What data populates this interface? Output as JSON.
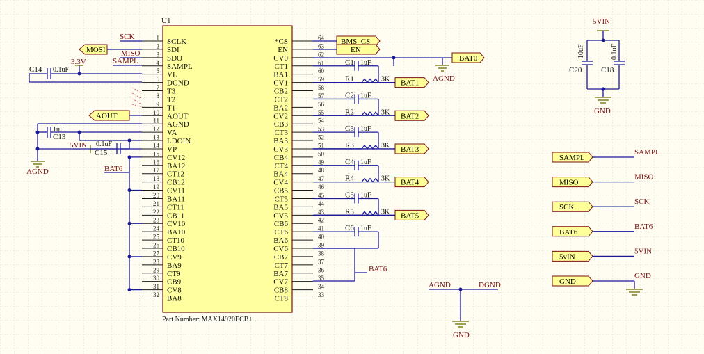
{
  "chip": {
    "designator": "U1",
    "part_number": "Part Number: MAX14920ECB+",
    "left_pins": [
      {
        "num": "1",
        "name": "SCLK"
      },
      {
        "num": "2",
        "name": "SDI"
      },
      {
        "num": "3",
        "name": "SDO"
      },
      {
        "num": "4",
        "name": "SAMPL"
      },
      {
        "num": "5",
        "name": "VL"
      },
      {
        "num": "6",
        "name": "DGND"
      },
      {
        "num": "7",
        "name": "T3"
      },
      {
        "num": "8",
        "name": "T2"
      },
      {
        "num": "9",
        "name": "T1"
      },
      {
        "num": "10",
        "name": "AOUT"
      },
      {
        "num": "11",
        "name": "AGND"
      },
      {
        "num": "12",
        "name": "VA"
      },
      {
        "num": "13",
        "name": "LDOIN"
      },
      {
        "num": "14",
        "name": "VP"
      },
      {
        "num": "15",
        "name": "CV12"
      },
      {
        "num": "16",
        "name": "BA12"
      },
      {
        "num": "17",
        "name": "CT12"
      },
      {
        "num": "18",
        "name": "CB12"
      },
      {
        "num": "19",
        "name": "CV11"
      },
      {
        "num": "20",
        "name": "BA11"
      },
      {
        "num": "21",
        "name": "CT11"
      },
      {
        "num": "22",
        "name": "CB11"
      },
      {
        "num": "23",
        "name": "CV10"
      },
      {
        "num": "24",
        "name": "BA10"
      },
      {
        "num": "25",
        "name": "CT10"
      },
      {
        "num": "26",
        "name": "CB10"
      },
      {
        "num": "27",
        "name": "CV9"
      },
      {
        "num": "28",
        "name": "BA9"
      },
      {
        "num": "29",
        "name": "CT9"
      },
      {
        "num": "30",
        "name": "CB9"
      },
      {
        "num": "31",
        "name": "CV8"
      },
      {
        "num": "32",
        "name": "BA8"
      }
    ],
    "right_pins": [
      {
        "num": "64",
        "name": "*CS"
      },
      {
        "num": "63",
        "name": "EN"
      },
      {
        "num": "62",
        "name": "CV0"
      },
      {
        "num": "61",
        "name": "CT1"
      },
      {
        "num": "60",
        "name": "BA1"
      },
      {
        "num": "59",
        "name": "CV1"
      },
      {
        "num": "58",
        "name": "CB2"
      },
      {
        "num": "57",
        "name": "CT2"
      },
      {
        "num": "56",
        "name": "BA2"
      },
      {
        "num": "55",
        "name": "CV2"
      },
      {
        "num": "54",
        "name": "CB3"
      },
      {
        "num": "53",
        "name": "CT3"
      },
      {
        "num": "52",
        "name": "BA3"
      },
      {
        "num": "51",
        "name": "CV3"
      },
      {
        "num": "50",
        "name": "CB4"
      },
      {
        "num": "49",
        "name": "CT4"
      },
      {
        "num": "48",
        "name": "BA4"
      },
      {
        "num": "47",
        "name": "CV4"
      },
      {
        "num": "46",
        "name": "CB5"
      },
      {
        "num": "45",
        "name": "CT5"
      },
      {
        "num": "44",
        "name": "BA5"
      },
      {
        "num": "43",
        "name": "CV5"
      },
      {
        "num": "42",
        "name": "CB6"
      },
      {
        "num": "41",
        "name": "CT6"
      },
      {
        "num": "40",
        "name": "BA6"
      },
      {
        "num": "39",
        "name": "CV6"
      },
      {
        "num": "38",
        "name": "CB7"
      },
      {
        "num": "37",
        "name": "CT7"
      },
      {
        "num": "36",
        "name": "BA7"
      },
      {
        "num": "35",
        "name": "CV7"
      },
      {
        "num": "34",
        "name": "CB8"
      },
      {
        "num": "33",
        "name": "CT8"
      }
    ]
  },
  "caps": [
    {
      "des": "C1",
      "val": "1uF"
    },
    {
      "des": "C2",
      "val": "1uF"
    },
    {
      "des": "C3",
      "val": "1uF"
    },
    {
      "des": "C4",
      "val": "1uF"
    },
    {
      "des": "C5",
      "val": "1uF"
    },
    {
      "des": "C6",
      "val": "1uF"
    }
  ],
  "resistors": [
    {
      "des": "R1",
      "val": "3K",
      "port": "BAT1"
    },
    {
      "des": "R2",
      "val": "3K",
      "port": "BAT2"
    },
    {
      "des": "R3",
      "val": "3K",
      "port": "BAT3"
    },
    {
      "des": "R4",
      "val": "3K",
      "port": "BAT4"
    },
    {
      "des": "R5",
      "val": "3K",
      "port": "BAT5"
    }
  ],
  "left_side": {
    "sck": "SCK",
    "miso": "MISO",
    "sampl": "SAMPL",
    "mosi": "MOSI",
    "v33": "3.3V",
    "c14": "C14",
    "c14_val": "0.1uF",
    "aout": "AOUT",
    "c13": "C13",
    "c13_val": "1uF",
    "agnd": "AGND",
    "vin": "5VIN",
    "c15": "C15",
    "c15_val": "0.1uF",
    "bat6": "BAT6"
  },
  "right_side": {
    "bms_cs": "BMS_CS",
    "en": "EN",
    "bat0": "BAT0",
    "agnd": "AGND",
    "bat6": "BAT6"
  },
  "ground_tie": {
    "agnd": "AGND",
    "dgnd": "DGND",
    "gnd": "GND"
  },
  "supply_caps": {
    "vin": "5VIN",
    "c20": "C20",
    "c20_val": "10uF",
    "c18": "C18",
    "c18_val": "0.1uF",
    "gnd": "GND"
  },
  "net_map": [
    {
      "port": "SAMPL",
      "net": "SAMPL"
    },
    {
      "port": "MISO",
      "net": "MISO"
    },
    {
      "port": "SCK",
      "net": "SCK"
    },
    {
      "port": "BAT6",
      "net": "BAT6"
    },
    {
      "port": "5vIN",
      "net": "5VIN"
    },
    {
      "port": "GND",
      "net": "GND"
    }
  ],
  "colors": {
    "wire": "#1a1a9a",
    "net_label": "#7a0f0f",
    "chip_fill": "#ffffa0",
    "port_fill": "#ffff99",
    "power": "#6b6b00"
  }
}
